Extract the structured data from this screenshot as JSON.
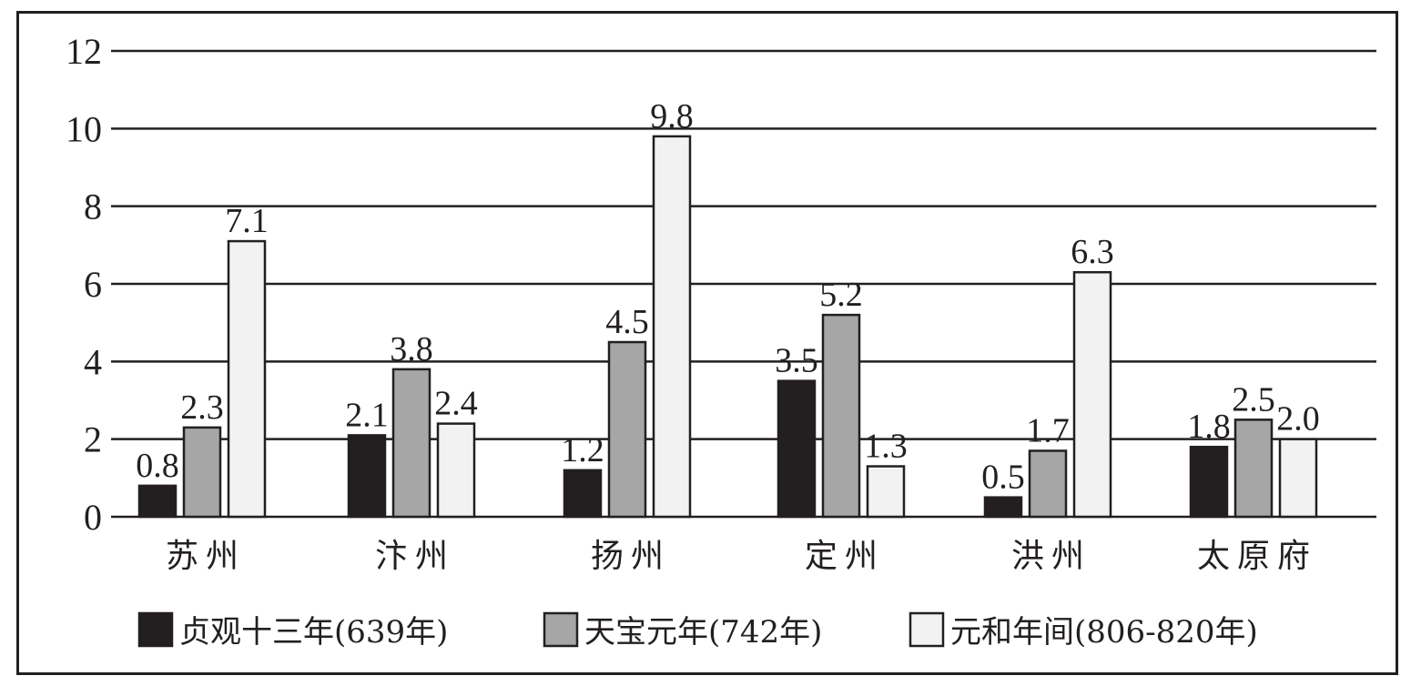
{
  "chart_data": {
    "type": "bar",
    "title": "",
    "xlabel": "",
    "ylabel": "",
    "ylim": [
      0,
      12
    ],
    "yticks": [
      "0",
      "2",
      "4",
      "6",
      "8",
      "10",
      "12"
    ],
    "grid": true,
    "legend_position": "bottom",
    "categories": [
      "苏州",
      "汴州",
      "扬州",
      "定州",
      "洪州",
      "太原府"
    ],
    "series": [
      {
        "name": "贞观十三年(639年)",
        "color": "#231f20",
        "values": [
          0.8,
          2.1,
          1.2,
          3.5,
          0.5,
          1.8
        ],
        "labels": [
          "0.8",
          "2.1",
          "1.2",
          "3.5",
          "0.5",
          "1.8"
        ]
      },
      {
        "name": "天宝元年(742年)",
        "color": "#a6a6a6",
        "values": [
          2.3,
          3.8,
          4.5,
          5.2,
          1.7,
          2.5
        ],
        "labels": [
          "2.3",
          "3.8",
          "4.5",
          "5.2",
          "1.7",
          "2.5"
        ]
      },
      {
        "name": "元和年间(806-820年)",
        "color": "#f2f2f2",
        "values": [
          7.1,
          2.4,
          9.8,
          1.3,
          6.3,
          2.0
        ],
        "labels": [
          "7.1",
          "2.4",
          "9.8",
          "1.3",
          "6.3",
          "2.0"
        ]
      }
    ]
  }
}
